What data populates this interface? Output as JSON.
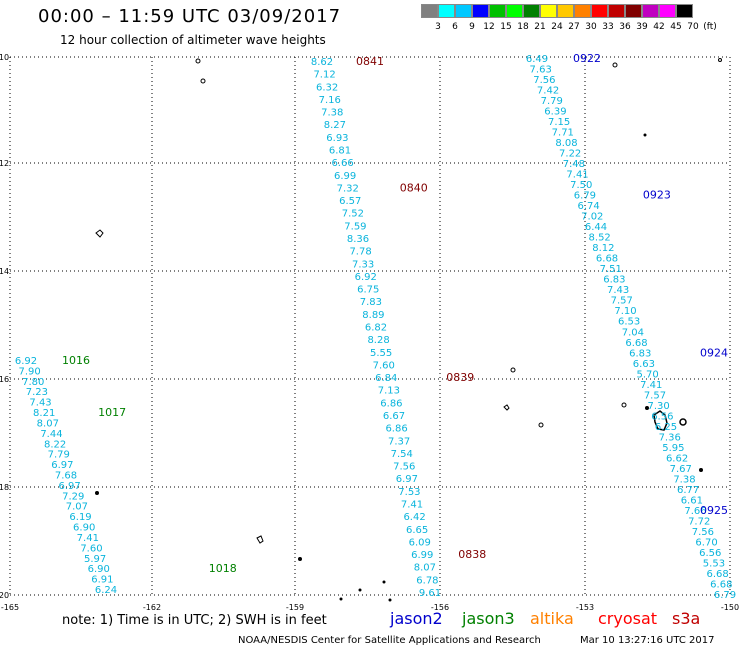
{
  "title": "00:00 – 11:59 UTC 03/09/2017",
  "subtitle": "12 hour collection of altimeter wave heights",
  "colorbar": {
    "colors": [
      "#808080",
      "#00ffff",
      "#00c8ff",
      "#0000ff",
      "#00c000",
      "#00ff00",
      "#008000",
      "#ffff00",
      "#ffc800",
      "#ff8000",
      "#ff0000",
      "#c00000",
      "#800000",
      "#c000c0",
      "#ff00ff",
      "#000000"
    ],
    "labels": [
      "3",
      "6",
      "9",
      "12",
      "15",
      "18",
      "21",
      "24",
      "27",
      "30",
      "33",
      "36",
      "39",
      "42",
      "45",
      "70",
      "(ft)"
    ]
  },
  "axes": {
    "lat_labels": [
      "-10",
      "-12",
      "-14",
      "-16",
      "-18",
      "-20"
    ],
    "lon_labels": [
      "-165",
      "-162",
      "-159",
      "-156",
      "-153",
      "-150"
    ]
  },
  "tracks": [
    {
      "satellite": "jason3",
      "color": "#0ab4dc",
      "values": [
        "6.92",
        "7.90",
        "7.80",
        "7.23",
        "7.43",
        "8.21",
        "8.07",
        "7.44",
        "8.22",
        "7.79",
        "6.97",
        "7.68",
        "6.97",
        "7.29",
        "7.07",
        "6.19",
        "6.90",
        "7.41",
        "7.60",
        "5.97",
        "6.90",
        "6.91",
        "6.24"
      ],
      "times": [
        {
          "label": "1016",
          "after": 0
        },
        {
          "label": "1017",
          "after": 5
        },
        {
          "label": "1018",
          "after": 20
        }
      ]
    },
    {
      "satellite": "cryosat",
      "color": "#0ab4dc",
      "values": [
        "8.62",
        "7.12",
        "6.32",
        "7.16",
        "7.38",
        "8.27",
        "6.93",
        "6.81",
        "6.66",
        "6.99",
        "7.32",
        "6.57",
        "7.52",
        "7.59",
        "8.36",
        "7.78",
        "7.33",
        "6.92",
        "6.75",
        "7.83",
        "8.89",
        "6.82",
        "8.28",
        "5.55",
        "7.60",
        "6.84",
        "7.13",
        "6.86",
        "6.67",
        "6.86",
        "7.37",
        "7.54",
        "7.56",
        "6.97",
        "7.53",
        "7.41",
        "6.42",
        "6.65",
        "6.09",
        "6.99",
        "8.07",
        "6.78",
        "9.61"
      ],
      "times": [
        {
          "label": "0841",
          "after": 0
        },
        {
          "label": "0840",
          "after": 10
        },
        {
          "label": "0839",
          "after": 25
        },
        {
          "label": "0838",
          "after": 39
        }
      ]
    },
    {
      "satellite": "jason2",
      "color": "#0ab4dc",
      "values": [
        "6.49",
        "7.63",
        "7.56",
        "7.42",
        "7.79",
        "6.39",
        "7.15",
        "7.71",
        "8.08",
        "7.22",
        "7.48",
        "7.41",
        "7.50",
        "6.79",
        "6.74",
        "7.02",
        "6.44",
        "8.52",
        "8.12",
        "6.68",
        "7.51",
        "6.83",
        "7.43",
        "7.57",
        "7.10",
        "6.53",
        "7.04",
        "6.68",
        "6.83",
        "6.63",
        "5.70",
        "7.41",
        "7.57",
        "7.30",
        "6.56",
        "6.25",
        "7.36",
        "5.95",
        "6.62",
        "7.67",
        "7.38",
        "6.77",
        "6.61",
        "7.66",
        "7.72",
        "7.56",
        "6.70",
        "6.56",
        "5.53",
        "6.68",
        "6.68",
        "6.79"
      ],
      "times": [
        {
          "label": "0922",
          "after": 0
        },
        {
          "label": "0923",
          "after": 13
        },
        {
          "label": "0924",
          "after": 28
        },
        {
          "label": "0925",
          "after": 43
        }
      ]
    }
  ],
  "note": "note: 1) Time is in UTC; 2) SWH is in feet",
  "satellites": [
    {
      "name": "jason2",
      "color": "#0000cc"
    },
    {
      "name": "jason3",
      "color": "#008000"
    },
    {
      "name": "altika",
      "color": "#ff8000"
    },
    {
      "name": "cryosat",
      "color": "#ff0000"
    },
    {
      "name": "s3a",
      "color": "#c00000"
    }
  ],
  "footer_left": "NOAA/NESDIS Center for Satellite Applications and Research",
  "footer_right": "Mar 10 13:27:16 UTC 2017"
}
